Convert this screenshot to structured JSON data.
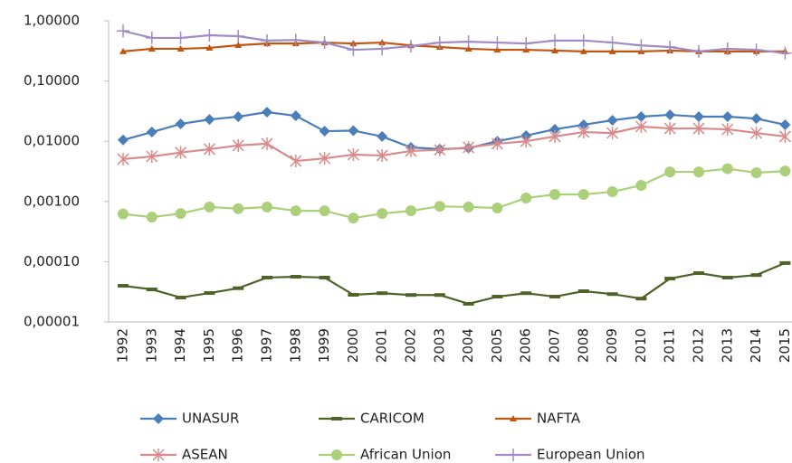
{
  "chart_data": {
    "type": "line",
    "log_scale": true,
    "legend_position": "bottom",
    "categories": [
      "1992",
      "1993",
      "1994",
      "1995",
      "1996",
      "1997",
      "1998",
      "1999",
      "2000",
      "2001",
      "2002",
      "2003",
      "2004",
      "2005",
      "2006",
      "2007",
      "2008",
      "2009",
      "2010",
      "2011",
      "2012",
      "2013",
      "2014",
      "2015"
    ],
    "ylim": [
      1e-05,
      1
    ],
    "yticks": [
      {
        "value": 1e-05,
        "label": "0,00001"
      },
      {
        "value": 0.0001,
        "label": "0,00010"
      },
      {
        "value": 0.001,
        "label": "0,00100"
      },
      {
        "value": 0.01,
        "label": "0,01000"
      },
      {
        "value": 0.1,
        "label": "0,10000"
      },
      {
        "value": 1,
        "label": "1,00000"
      }
    ],
    "series": [
      {
        "name": "UNASUR",
        "color": "#4a7ebb",
        "marker": "diamond",
        "values": [
          0.0105,
          0.0142,
          0.0194,
          0.023,
          0.0256,
          0.0304,
          0.0265,
          0.0147,
          0.015,
          0.012,
          0.0079,
          0.0074,
          0.0077,
          0.01,
          0.0124,
          0.0158,
          0.0188,
          0.0223,
          0.0256,
          0.0275,
          0.0256,
          0.0256,
          0.0238,
          0.0188
        ]
      },
      {
        "name": "CARICOM",
        "color": "#4f6228",
        "marker": "dash",
        "values": [
          3.98e-05,
          3.47e-05,
          2.54e-05,
          3.02e-05,
          3.63e-05,
          5.45e-05,
          5.63e-05,
          5.45e-05,
          2.82e-05,
          3e-05,
          2.8e-05,
          2.8e-05,
          2e-05,
          2.63e-05,
          3e-05,
          2.63e-05,
          3.24e-05,
          2.9e-05,
          2.44e-05,
          5.25e-05,
          6.46e-05,
          5.45e-05,
          6e-05,
          9.5e-05
        ]
      },
      {
        "name": "NAFTA",
        "color": "#c0560f",
        "marker": "triangle",
        "values": [
          0.31,
          0.343,
          0.343,
          0.355,
          0.393,
          0.42,
          0.42,
          0.435,
          0.42,
          0.435,
          0.39,
          0.367,
          0.343,
          0.33,
          0.33,
          0.32,
          0.31,
          0.31,
          0.31,
          0.32,
          0.31,
          0.31,
          0.31,
          0.31
        ]
      },
      {
        "name": "ASEAN",
        "color": "#d98a8a",
        "marker": "star",
        "values": [
          0.00505,
          0.0056,
          0.0065,
          0.0074,
          0.0085,
          0.0091,
          0.0047,
          0.0052,
          0.006,
          0.0058,
          0.0069,
          0.0072,
          0.0079,
          0.0091,
          0.01,
          0.012,
          0.0142,
          0.0137,
          0.0175,
          0.0163,
          0.0163,
          0.0158,
          0.0137,
          0.012
        ]
      },
      {
        "name": "African Union",
        "color": "#acd07a",
        "marker": "circle",
        "values": [
          0.00062,
          0.00055,
          0.00063,
          0.00081,
          0.00076,
          0.00081,
          0.0007,
          0.0007,
          0.00053,
          0.00063,
          0.0007,
          0.00083,
          0.00081,
          0.00078,
          0.00114,
          0.00131,
          0.00131,
          0.00145,
          0.00185,
          0.0031,
          0.0031,
          0.0035,
          0.003,
          0.0032
        ]
      },
      {
        "name": "European Union",
        "color": "#9f8cc4",
        "marker": "plus",
        "values": [
          0.68,
          0.52,
          0.52,
          0.575,
          0.555,
          0.47,
          0.48,
          0.435,
          0.33,
          0.343,
          0.38,
          0.435,
          0.45,
          0.435,
          0.42,
          0.47,
          0.47,
          0.435,
          0.39,
          0.367,
          0.31,
          0.343,
          0.33,
          0.29
        ]
      }
    ]
  }
}
